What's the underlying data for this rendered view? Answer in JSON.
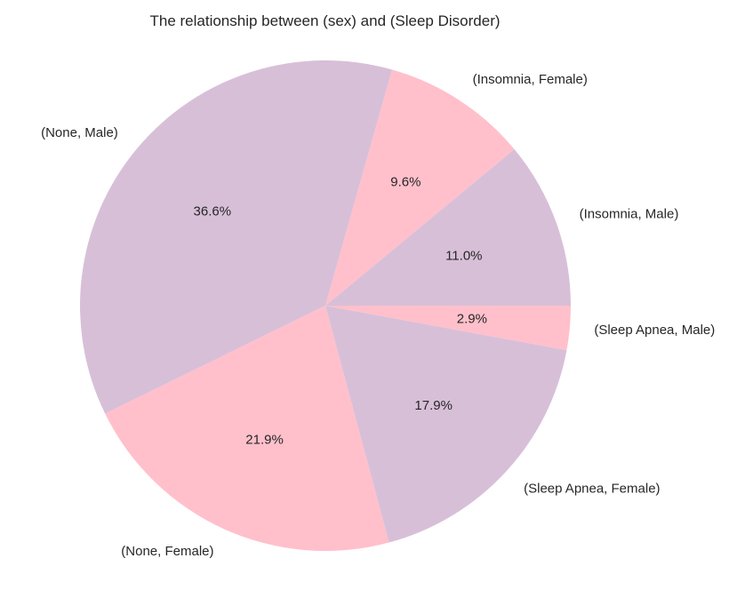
{
  "chart_data": {
    "type": "pie",
    "title": "The relationship between (sex) and (Sleep Disorder)",
    "start_angle_deg": 0,
    "direction": "counterclockwise",
    "slices": [
      {
        "label": "(Insomnia, Male)",
        "value": 11.0,
        "pct_label": "11.0%",
        "color": "#d8bfd8"
      },
      {
        "label": "(Insomnia, Female)",
        "value": 9.6,
        "pct_label": "9.6%",
        "color": "#ffc0cb"
      },
      {
        "label": "(None, Male)",
        "value": 36.6,
        "pct_label": "36.6%",
        "color": "#d8bfd8"
      },
      {
        "label": "(None, Female)",
        "value": 21.9,
        "pct_label": "21.9%",
        "color": "#ffc0cb"
      },
      {
        "label": "(Sleep Apnea, Female)",
        "value": 17.9,
        "pct_label": "17.9%",
        "color": "#d8bfd8"
      },
      {
        "label": "(Sleep Apnea, Male)",
        "value": 2.9,
        "pct_label": "2.9%",
        "color": "#ffc0cb"
      }
    ]
  }
}
